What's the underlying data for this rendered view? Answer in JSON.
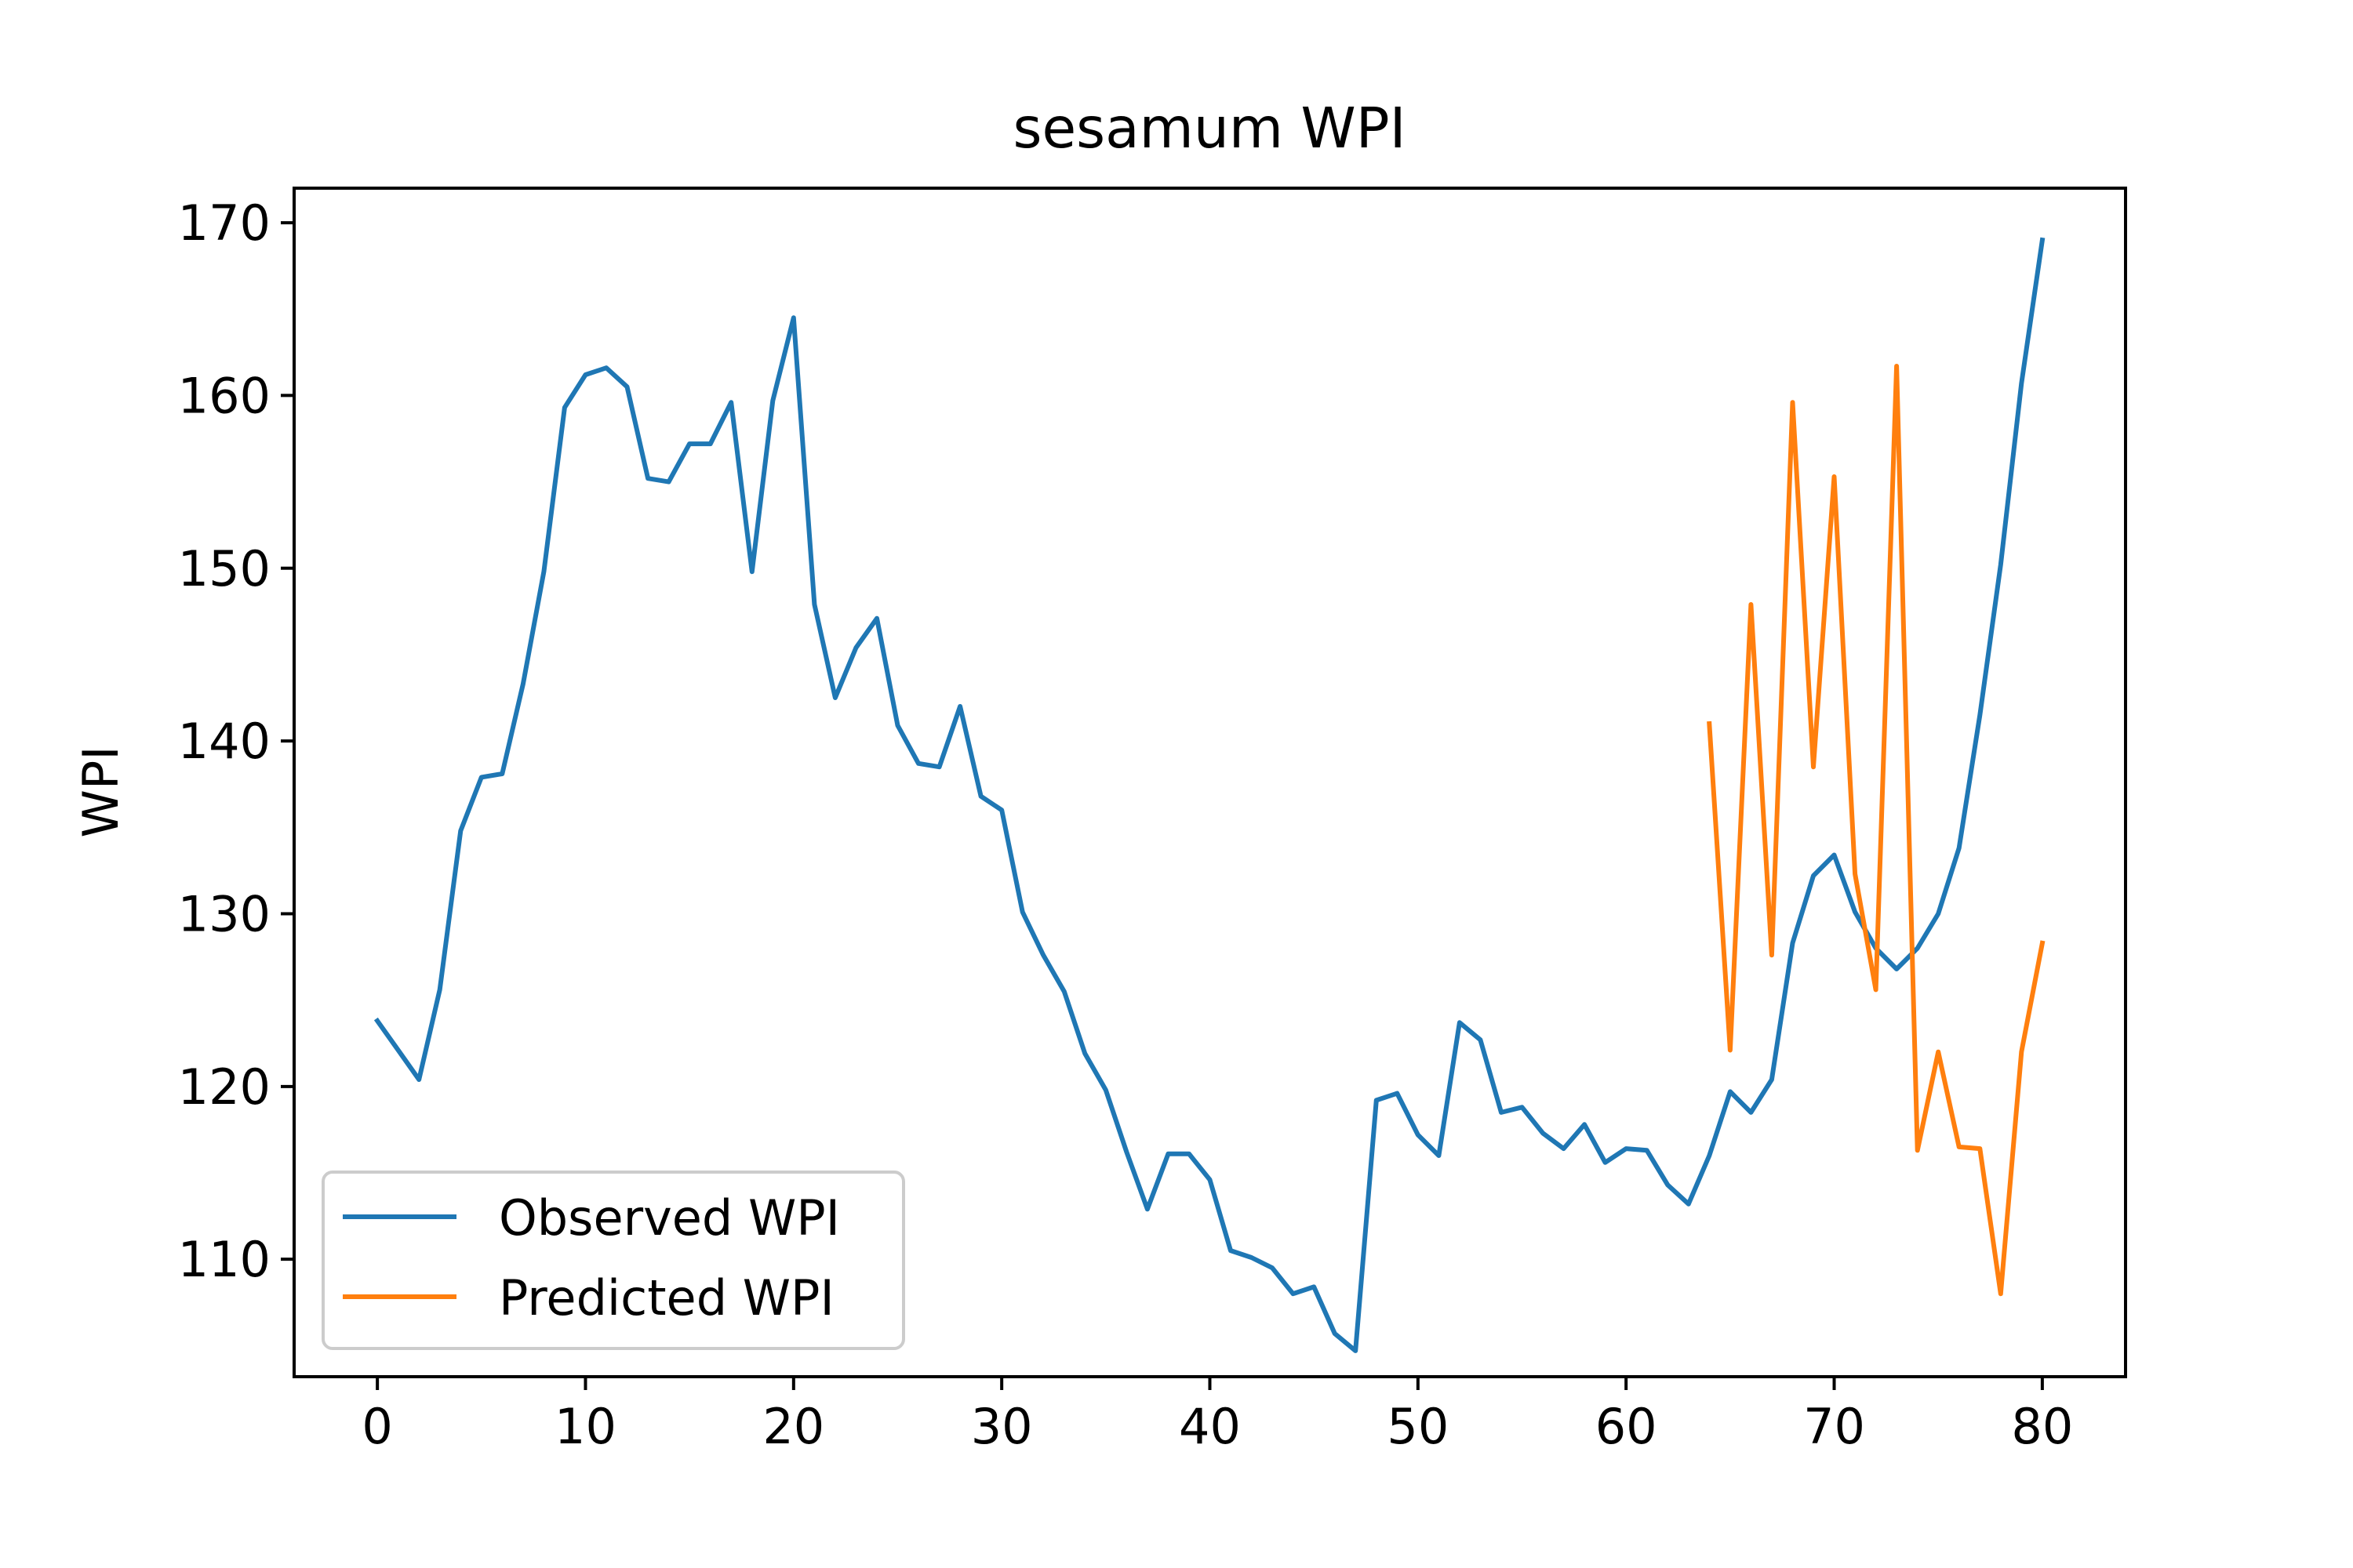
{
  "chart_data": {
    "type": "line",
    "title": "sesamum WPI",
    "xlabel": "",
    "ylabel": "WPI",
    "xlim": [
      -4,
      84
    ],
    "ylim": [
      103.2,
      172
    ],
    "xticks": [
      0,
      10,
      20,
      30,
      40,
      50,
      60,
      70,
      80
    ],
    "yticks": [
      110,
      120,
      130,
      140,
      150,
      160,
      170
    ],
    "grid": false,
    "legend_position": "lower-left",
    "series": [
      {
        "name": "Observed WPI",
        "color": "#1f77b4",
        "x": [
          0,
          1,
          2,
          3,
          4,
          5,
          6,
          7,
          8,
          9,
          10,
          11,
          12,
          13,
          14,
          15,
          16,
          17,
          18,
          19,
          20,
          21,
          22,
          23,
          24,
          25,
          26,
          27,
          28,
          29,
          30,
          31,
          32,
          33,
          34,
          35,
          36,
          37,
          38,
          39,
          40,
          41,
          42,
          43,
          44,
          45,
          46,
          47,
          48,
          49,
          50,
          51,
          52,
          53,
          54,
          55,
          56,
          57,
          58,
          59,
          60,
          61,
          62,
          63,
          64,
          65,
          66,
          67,
          68,
          69,
          70,
          71,
          72,
          73,
          74,
          75,
          76,
          77,
          78,
          79,
          80
        ],
        "values": [
          123.8,
          122.1,
          120.4,
          125.6,
          134.8,
          137.9,
          138.1,
          143.3,
          149.8,
          159.3,
          161.2,
          161.6,
          160.5,
          155.2,
          155.0,
          157.2,
          157.2,
          159.6,
          149.8,
          159.7,
          164.5,
          147.9,
          142.5,
          145.4,
          147.1,
          140.9,
          138.7,
          138.5,
          142.0,
          136.8,
          136.0,
          130.1,
          127.6,
          125.5,
          121.9,
          119.8,
          116.2,
          112.9,
          116.1,
          116.1,
          114.6,
          110.5,
          110.1,
          109.5,
          108.0,
          108.4,
          105.7,
          104.7,
          119.2,
          119.6,
          117.2,
          116.0,
          123.7,
          122.7,
          118.5,
          118.8,
          117.3,
          116.4,
          117.8,
          115.6,
          116.4,
          116.3,
          114.3,
          113.2,
          116.0,
          119.7,
          118.5,
          120.4,
          128.3,
          132.2,
          133.4,
          130.1,
          128.0,
          126.8,
          128.0,
          130.0,
          133.8,
          141.5,
          150.2,
          160.7,
          169.0
        ]
      },
      {
        "name": "Predicted WPI",
        "color": "#ff7f0e",
        "x": [
          64,
          65,
          66,
          67,
          68,
          69,
          70,
          71,
          72,
          73,
          74,
          75,
          76,
          77,
          78,
          79,
          80
        ],
        "values": [
          141.0,
          122.1,
          147.9,
          127.6,
          159.6,
          138.5,
          155.3,
          132.3,
          125.6,
          161.7,
          116.3,
          122.0,
          116.5,
          116.4,
          108.0,
          122.0,
          128.3
        ]
      }
    ]
  }
}
